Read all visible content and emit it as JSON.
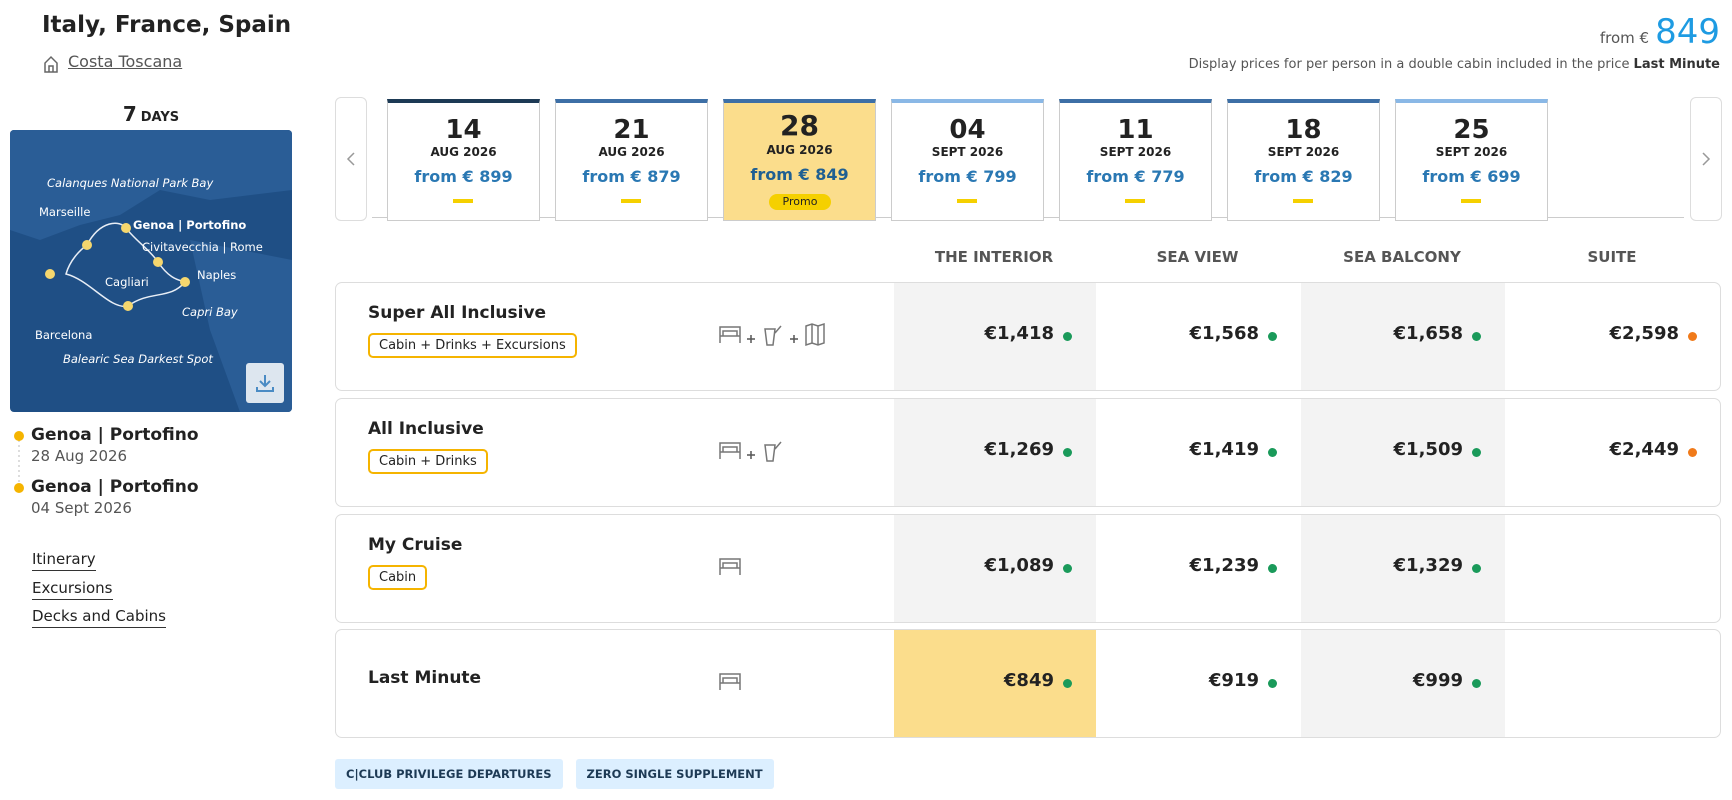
{
  "header": {
    "title": "Italy, France, Spain",
    "ship": "Costa Toscana",
    "price_prefix": "from €",
    "price": "849",
    "note": "Display prices for per person in a double cabin included in the price",
    "note_bold": "Last Minute"
  },
  "left": {
    "duration_number": "7",
    "duration_unit": "DAYS",
    "map_labels": [
      "Calanques National Park Bay",
      "Marseille",
      "Genoa | Portofino",
      "Civitavecchia | Rome",
      "Naples",
      "Cagliari",
      "Capri Bay",
      "Barcelona",
      "Balearic Sea Darkest Spot"
    ],
    "stops": [
      {
        "name": "Genoa | Portofino",
        "date": "28 Aug 2026"
      },
      {
        "name": "Genoa | Portofino",
        "date": "04 Sept 2026"
      }
    ],
    "links": [
      "Itinerary",
      "Excursions",
      "Decks and Cabins"
    ]
  },
  "dates": [
    {
      "day": "14",
      "month": "AUG 2026",
      "price": "from € 899"
    },
    {
      "day": "21",
      "month": "AUG 2026",
      "price": "from € 879"
    },
    {
      "day": "28",
      "month": "AUG 2026",
      "price": "from € 849",
      "badge": "Promo"
    },
    {
      "day": "04",
      "month": "SEPT 2026",
      "price": "from € 799"
    },
    {
      "day": "11",
      "month": "SEPT 2026",
      "price": "from € 779"
    },
    {
      "day": "18",
      "month": "SEPT 2026",
      "price": "from € 829"
    },
    {
      "day": "25",
      "month": "SEPT 2026",
      "price": "from € 699"
    }
  ],
  "table": {
    "columns": [
      "THE INTERIOR",
      "SEA VIEW",
      "SEA BALCONY",
      "SUITE"
    ],
    "rows": [
      {
        "name": "Super All Inclusive",
        "tag": "Cabin + Drinks + Excursions",
        "prices": [
          "€1,418",
          "€1,568",
          "€1,658",
          "€2,598"
        ]
      },
      {
        "name": "All Inclusive",
        "tag": "Cabin + Drinks",
        "prices": [
          "€1,269",
          "€1,419",
          "€1,509",
          "€2,449"
        ]
      },
      {
        "name": "My Cruise",
        "tag": "Cabin",
        "prices": [
          "€1,089",
          "€1,239",
          "€1,329"
        ]
      },
      {
        "name": "Last Minute",
        "prices": [
          "€849",
          "€919",
          "€999"
        ]
      }
    ]
  },
  "tags": [
    "C|CLUB PRIVILEGE DEPARTURES",
    "ZERO SINGLE SUPPLEMENT"
  ]
}
